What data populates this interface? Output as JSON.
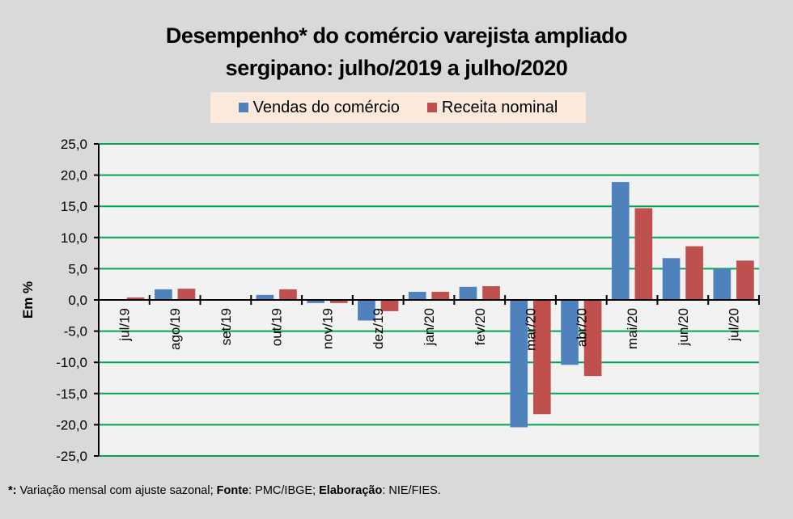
{
  "chart_data": {
    "type": "bar",
    "title": [
      "Desempenho* do comércio varejista ampliado",
      "sergipano: julho/2019 a julho/2020"
    ],
    "xlabel": "",
    "ylabel": "Em %",
    "ylim": [
      -25,
      25
    ],
    "yticks": [
      25,
      20,
      15,
      10,
      5,
      0,
      -5,
      -10,
      -15,
      -20,
      -25
    ],
    "ytick_labels": [
      "25,0",
      "20,0",
      "15,0",
      "10,0",
      "5,0",
      "0,0",
      "-5,0",
      "-10,0",
      "-15,0",
      "-20,0",
      "-25,0"
    ],
    "grid": true,
    "legend_position": "top-center",
    "categories": [
      "jul/19",
      "ago/19",
      "set/19",
      "out/19",
      "nov/19",
      "dez/19",
      "jan/20",
      "fev/20",
      "mar/20",
      "abr/20",
      "mai/20",
      "jun/20",
      "jul/20"
    ],
    "series": [
      {
        "name": "Vendas do comércio",
        "color": "#4f81bd",
        "values": [
          0.0,
          1.7,
          0.0,
          0.8,
          -0.5,
          -3.3,
          1.3,
          2.1,
          -20.4,
          -10.4,
          18.9,
          6.7,
          5.0
        ]
      },
      {
        "name": "Receita nominal",
        "color": "#c0504d",
        "values": [
          0.4,
          1.8,
          0.0,
          1.7,
          -0.5,
          -1.8,
          1.3,
          2.2,
          -18.3,
          -12.2,
          14.7,
          8.6,
          6.3
        ]
      }
    ]
  },
  "colors": {
    "background": "#d9d9d9",
    "plot_background": "#f2f2f2",
    "gridline": "#00a651",
    "axis": "#000000",
    "legend_background": "#fbe9dc"
  },
  "footnote": {
    "asterisk": "*:",
    "text1": " Variação mensal com ajuste sazonal; ",
    "fonte_label": "Fonte",
    "text2": ": PMC/IBGE; ",
    "elaboracao_label": "Elaboração",
    "text3": ": NIE/FIES."
  }
}
